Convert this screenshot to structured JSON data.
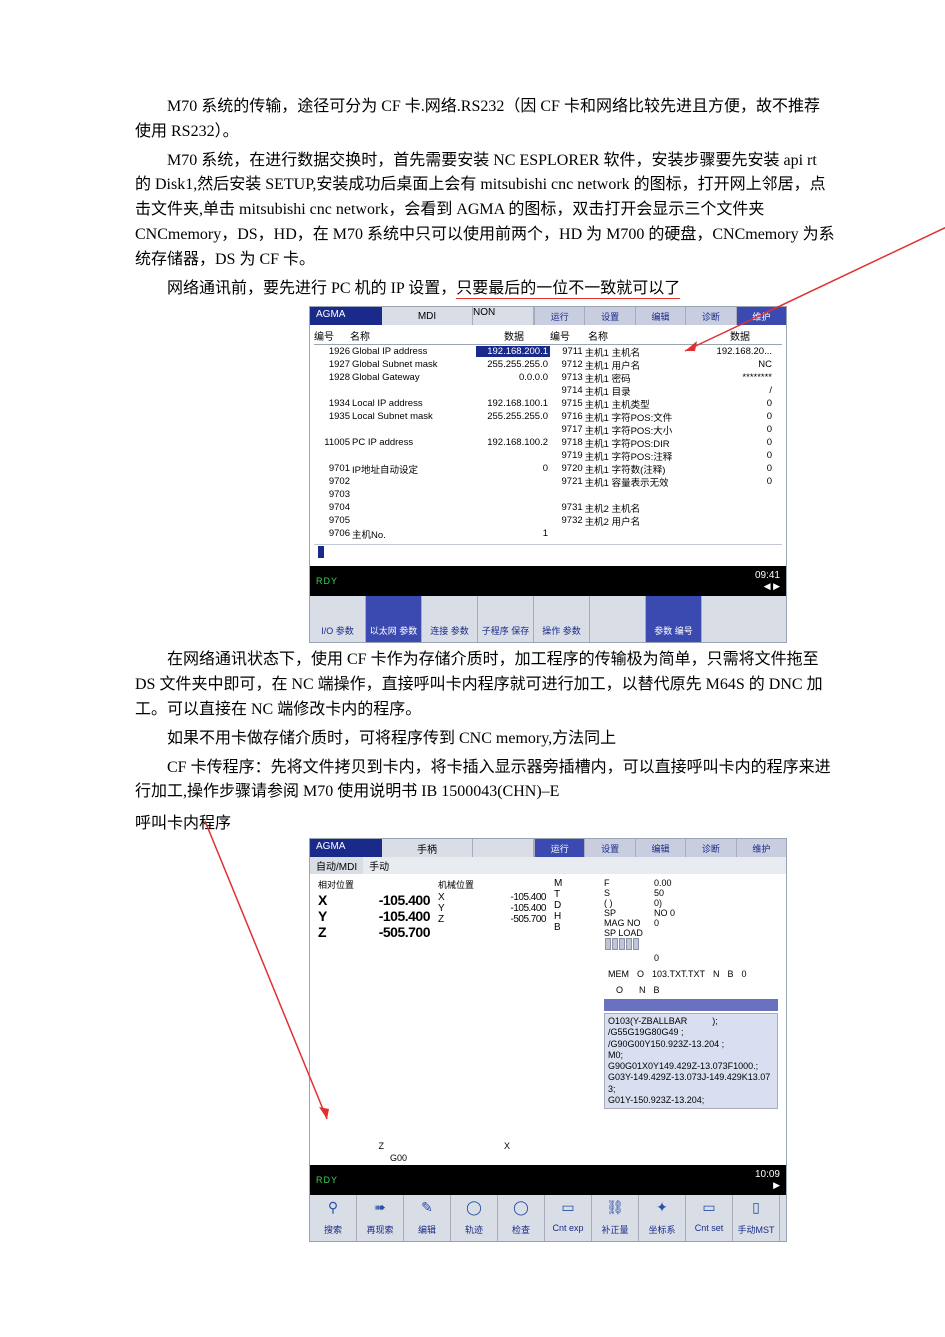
{
  "text": {
    "p1": "M70 系统的传输，途径可分为 CF 卡.网络.RS232（因 CF 卡和网络比较先进且方便，故不推荐使用 RS232）。",
    "p2": "M70 系统，在进行数据交换时，首先需要安装 NC ESPLORER 软件，安装步骤要先安装 api rt 的 Disk1,然后安装 SETUP,安装成功后桌面上会有 mitsubishi cnc network 的图标，打开网上邻居，点击文件夹,单击 mitsubishi cnc network，会看到 AGMA 的图标，双击打开会显示三个文件夹 CNCmemory，DS，HD，在 M70 系统中只可以使用前两个，HD 为 M700 的硬盘，CNCmemory 为系统存储器，DS 为 CF 卡。",
    "p3": "网络通讯前，要先进行 PC 机的 IP 设置，只要最后的一位不一致就可以了",
    "p4": "在网络通讯状态下，使用 CF 卡作为存储介质时，加工程序的传输极为简单，只需将文件拖至 DS 文件夹中即可，在 NC 端操作，直接呼叫卡内程序就可进行加工，以替代原先 M64S 的 DNC 加工。可以直接在 NC 端修改卡内的程序。",
    "p5": "如果不用卡做存储介质时，可将程序传到 CNC memory,方法同上",
    "p6": "CF 卡传程序：先将文件拷贝到卡内，将卡插入显示器旁插槽内，可以直接呼叫卡内的程序来进行加工,操作步骤请参阅 M70 使用说明书 IB 1500043(CHN)–E",
    "caption2": "呼叫卡内程序"
  },
  "colors": {
    "brand": "#1a2a8a",
    "accent": "#3a4ab0",
    "panel": "#d9dde6",
    "panel2": "#c8cde0",
    "rdy": "#39d353",
    "red": "#e03030",
    "gcode_bg": "#d9dff0"
  },
  "shot1": {
    "agma": "AGMA",
    "mode": "MDI",
    "nonLabel": "NON",
    "tabs": [
      "运行",
      "设置",
      "编辑",
      "诊断",
      "维护"
    ],
    "active_tab_index": 4,
    "head": {
      "num": "编号",
      "name": "名称",
      "data": "数据"
    },
    "left_rows": [
      {
        "n": "1926",
        "label": "Global IP address",
        "val": "192.168.200.1",
        "hl": true
      },
      {
        "n": "1927",
        "label": "Global Subnet mask",
        "val": "255.255.255.0"
      },
      {
        "n": "1928",
        "label": "Global Gateway",
        "val": "0.0.0.0"
      },
      {
        "n": "",
        "label": "",
        "val": ""
      },
      {
        "n": "1934",
        "label": "Local IP address",
        "val": "192.168.100.1"
      },
      {
        "n": "1935",
        "label": "Local Subnet mask",
        "val": "255.255.255.0"
      },
      {
        "n": "",
        "label": "",
        "val": ""
      },
      {
        "n": "11005",
        "label": "PC IP address",
        "val": "192.168.100.2"
      },
      {
        "n": "",
        "label": "",
        "val": ""
      },
      {
        "n": "9701",
        "label": "IP地址自动设定",
        "val": "0"
      },
      {
        "n": "9702",
        "label": "",
        "val": ""
      },
      {
        "n": "9703",
        "label": "",
        "val": ""
      },
      {
        "n": "9704",
        "label": "",
        "val": ""
      },
      {
        "n": "9705",
        "label": "",
        "val": ""
      },
      {
        "n": "9706",
        "label": "主机No.",
        "val": "1"
      }
    ],
    "right_rows": [
      {
        "n": "9711",
        "label": "主机1 主机名",
        "val": "192.168.20..."
      },
      {
        "n": "9712",
        "label": "主机1 用户名",
        "val": "NC"
      },
      {
        "n": "9713",
        "label": "主机1 密码",
        "val": "********"
      },
      {
        "n": "9714",
        "label": "主机1 目录",
        "val": "/"
      },
      {
        "n": "9715",
        "label": "主机1 主机类型",
        "val": "0"
      },
      {
        "n": "9716",
        "label": "主机1 字符POS:文件",
        "val": "0"
      },
      {
        "n": "9717",
        "label": "主机1 字符POS:大小",
        "val": "0"
      },
      {
        "n": "9718",
        "label": "主机1 字符POS:DIR",
        "val": "0"
      },
      {
        "n": "9719",
        "label": "主机1 字符POS:注释",
        "val": "0"
      },
      {
        "n": "9720",
        "label": "主机1 字符数(注释)",
        "val": "0"
      },
      {
        "n": "9721",
        "label": "主机1 容量表示无效",
        "val": "0"
      },
      {
        "n": "",
        "label": "",
        "val": ""
      },
      {
        "n": "9731",
        "label": "主机2 主机名",
        "val": ""
      },
      {
        "n": "9732",
        "label": "主机2 用户名",
        "val": ""
      }
    ],
    "clock": "09:41",
    "rdy": "RDY",
    "fkeys": [
      {
        "label": "I/O\n参数",
        "active": false
      },
      {
        "label": "以太网\n参数",
        "active": true
      },
      {
        "label": "连接\n参数",
        "active": false
      },
      {
        "label": "子程序\n保存",
        "active": false
      },
      {
        "label": "操作\n参数",
        "active": false
      },
      {
        "label": "",
        "active": false,
        "blank": true
      },
      {
        "label": "参数\n编号",
        "active": true
      }
    ]
  },
  "shot2": {
    "agma": "AGMA",
    "mode": "手柄",
    "tabs": [
      "运行",
      "设置",
      "编辑",
      "诊断",
      "维护"
    ],
    "active_tab_index": 0,
    "sub_tabs": {
      "left": "自动/MDI",
      "right": "手动"
    },
    "col1_head": "相对位置",
    "col2_head": "机械位置",
    "axes1": [
      {
        "ax": "X",
        "v": "-105.400"
      },
      {
        "ax": "Y",
        "v": "-105.400"
      },
      {
        "ax": "Z",
        "v": "-505.700"
      }
    ],
    "axes2": [
      {
        "ax": "X",
        "v": "-105.400"
      },
      {
        "ax": "Y",
        "v": "-105.400"
      },
      {
        "ax": "Z",
        "v": "-505.700"
      }
    ],
    "col3_markers": [
      "M",
      "T",
      "D",
      "H",
      "B"
    ],
    "info": [
      {
        "l": "F",
        "v": "0.00"
      },
      {
        "l": "S",
        "v": "50"
      },
      {
        "l": "( )",
        "v": "0)"
      },
      {
        "l": "SP",
        "v": "NO           0"
      },
      {
        "l": "MAG NO",
        "v": "0"
      },
      {
        "l": "SP LOAD",
        "v": ""
      }
    ],
    "sp_load_value": "0",
    "mem_line": {
      "mem": "MEM",
      "o1": "O",
      "file": "103.TXT.TXT",
      "n": "N",
      "b": "B",
      "zero": "0"
    },
    "gcode": "O103(Y-ZBALLBAR          );\n/G55G19G80G49 ;\n/G90G00Y150.923Z-13.204 ;\nM0;\nG90G01X0Y149.429Z-13.073F1000.;\nG03Y-149.429Z-13.073J-149.429K13.073;\nG01Y-150.923Z-13.204;",
    "g_left": "Z",
    "g_x": "X",
    "g_bottom": "G00",
    "clock": "10:09",
    "rdy": "RDY",
    "fkeys2": [
      {
        "label": "搜索",
        "icon": "⚲"
      },
      {
        "label": "再现索",
        "icon": "➠"
      },
      {
        "label": "编辑",
        "icon": "✎"
      },
      {
        "label": "轨迹",
        "icon": "◯"
      },
      {
        "label": "检查",
        "icon": "◯"
      },
      {
        "label": "Cnt exp",
        "icon": "▭"
      },
      {
        "label": "补正量",
        "icon": "⛓"
      },
      {
        "label": "坐标系",
        "icon": "✦"
      },
      {
        "label": "Cnt set",
        "icon": "▭"
      },
      {
        "label": "手动MST",
        "icon": "▯"
      }
    ]
  }
}
